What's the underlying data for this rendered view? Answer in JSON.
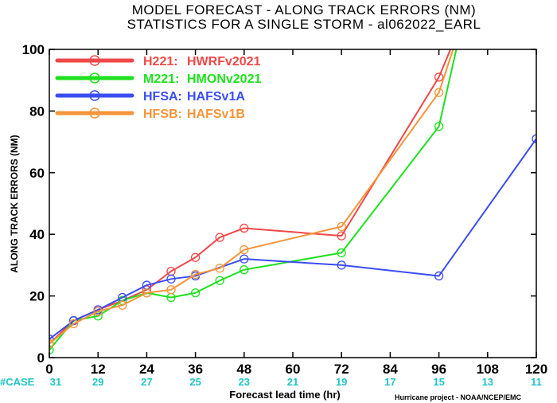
{
  "title_line1": "MODEL FORECAST - ALONG TRACK ERRORS (NM)",
  "title_line2": "STATISTICS FOR A SINGLE STORM - al062022_EARL",
  "credit": "Hurricane project - NOAA/NCEP/EMC",
  "case_prefix": "#CASE",
  "case_color": "#22c4c4",
  "chart_data": {
    "type": "line",
    "xlabel": "Forecast lead time (hr)",
    "ylabel": "ALONG TRACK ERRORS (NM)",
    "xlim": [
      0,
      120
    ],
    "ylim": [
      0,
      100
    ],
    "xticks": [
      0,
      12,
      24,
      36,
      48,
      60,
      72,
      84,
      96,
      108,
      120
    ],
    "yticks": [
      0,
      20,
      40,
      60,
      80,
      100
    ],
    "grid": false,
    "legend_position": "top-left",
    "cases": [
      {
        "x": 0,
        "n": "31"
      },
      {
        "x": 12,
        "n": "29"
      },
      {
        "x": 24,
        "n": "27"
      },
      {
        "x": 36,
        "n": "25"
      },
      {
        "x": 48,
        "n": "23"
      },
      {
        "x": 60,
        "n": "21"
      },
      {
        "x": 72,
        "n": "19"
      },
      {
        "x": 84,
        "n": "17"
      },
      {
        "x": 96,
        "n": "15"
      },
      {
        "x": 108,
        "n": "13"
      },
      {
        "x": 120,
        "n": "11"
      }
    ],
    "series": [
      {
        "name": "H221:",
        "label": "HWRFv2021",
        "color": "#f04848",
        "points": [
          [
            0,
            4.5
          ],
          [
            6,
            12
          ],
          [
            12,
            15.5
          ],
          [
            18,
            18.5
          ],
          [
            24,
            22
          ],
          [
            30,
            28
          ],
          [
            36,
            32.5
          ],
          [
            42,
            39
          ],
          [
            48,
            42
          ],
          [
            72,
            39.5
          ],
          [
            96,
            91
          ],
          [
            102,
            110
          ]
        ]
      },
      {
        "name": "M221:",
        "label": "HMONv2021",
        "color": "#1ee01e",
        "points": [
          [
            0,
            2.5
          ],
          [
            6,
            12
          ],
          [
            12,
            13.5
          ],
          [
            18,
            18.5
          ],
          [
            24,
            21
          ],
          [
            30,
            19.5
          ],
          [
            36,
            21
          ],
          [
            42,
            25
          ],
          [
            48,
            28.5
          ],
          [
            72,
            34
          ],
          [
            96,
            75
          ],
          [
            102,
            110
          ]
        ]
      },
      {
        "name": "HFSA:",
        "label": "HAFSv1A",
        "color": "#3a4df0",
        "points": [
          [
            0,
            6
          ],
          [
            6,
            12
          ],
          [
            12,
            15.5
          ],
          [
            18,
            19.5
          ],
          [
            24,
            23.5
          ],
          [
            30,
            25.5
          ],
          [
            36,
            26.5
          ],
          [
            48,
            32
          ],
          [
            72,
            30
          ],
          [
            96,
            26.5
          ],
          [
            120,
            71
          ]
        ]
      },
      {
        "name": "HFSB:",
        "label": "HAFSv1B",
        "color": "#f5943a",
        "points": [
          [
            0,
            4.5
          ],
          [
            6,
            11
          ],
          [
            12,
            15
          ],
          [
            18,
            17
          ],
          [
            24,
            21
          ],
          [
            30,
            22
          ],
          [
            36,
            27
          ],
          [
            42,
            29
          ],
          [
            48,
            35
          ],
          [
            72,
            42.5
          ],
          [
            96,
            86
          ],
          [
            102,
            110
          ]
        ]
      }
    ]
  }
}
